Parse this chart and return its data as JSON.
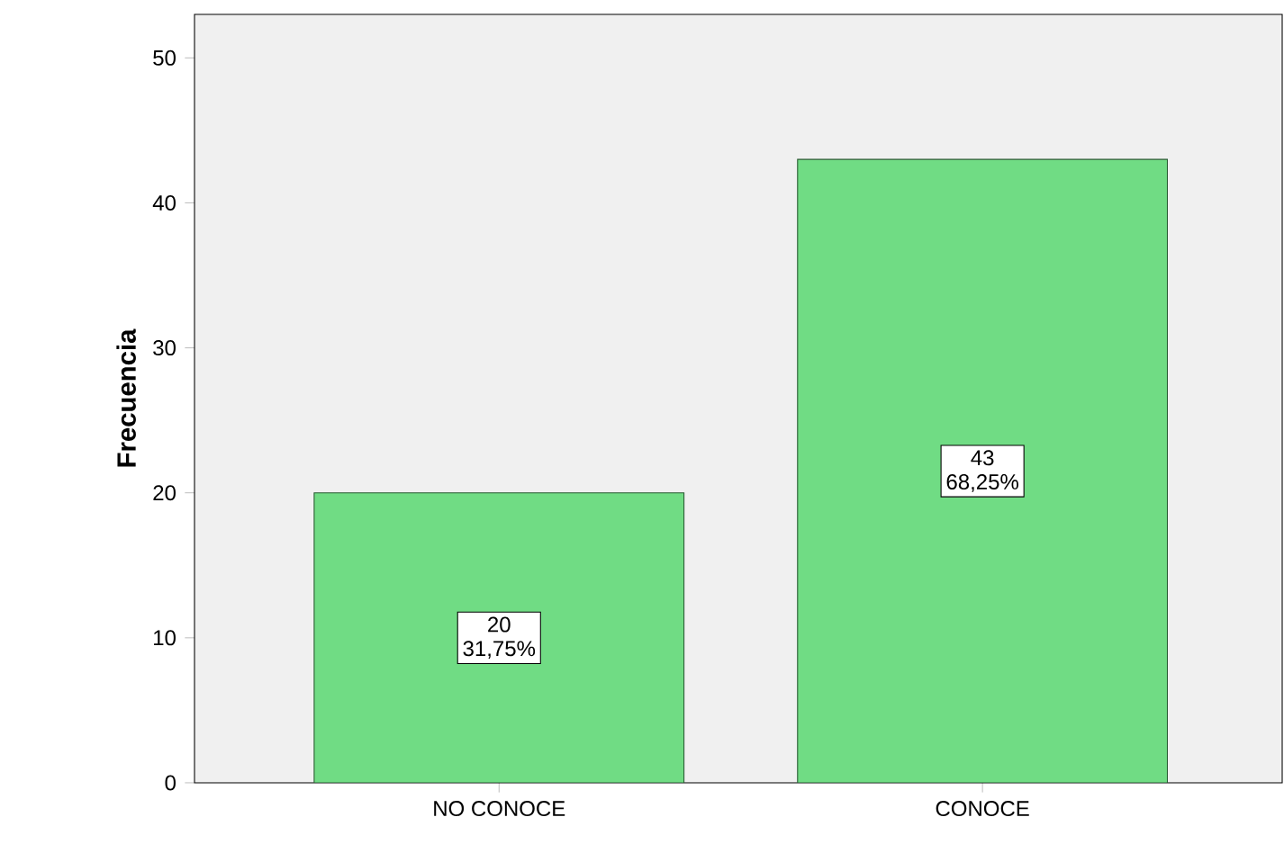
{
  "chart_data": {
    "type": "bar",
    "ylabel": "Frecuencia",
    "categories": [
      "NO CONOCE",
      "CONOCE"
    ],
    "values": [
      20,
      43
    ],
    "color": "#70dc84",
    "value_labels": [
      "20",
      "43"
    ],
    "annotations": [
      "31,75%",
      "68,25%"
    ],
    "ylim": [
      0,
      53
    ],
    "yticks": [
      0,
      10,
      20,
      30,
      40,
      50
    ]
  }
}
